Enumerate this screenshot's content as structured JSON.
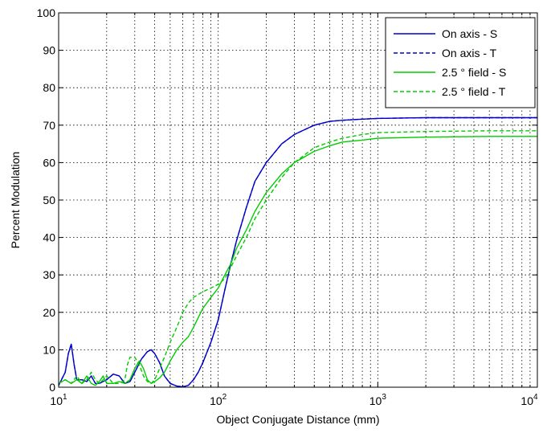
{
  "chart_data": {
    "type": "line",
    "xscale": "log",
    "xlim": [
      10,
      10000
    ],
    "ylim": [
      0,
      100
    ],
    "xlabel": "Object Conjugate Distance (mm)",
    "ylabel": "Percent Modulation",
    "grid": true,
    "legend_position": "top-right",
    "yticks": [
      "0",
      "10",
      "20",
      "30",
      "40",
      "50",
      "60",
      "70",
      "80",
      "90",
      "100"
    ],
    "xticks": [
      {
        "base": "10",
        "exp": "1"
      },
      {
        "base": "10",
        "exp": "2"
      },
      {
        "base": "10",
        "exp": "3"
      },
      {
        "base": "10",
        "exp": "4"
      }
    ],
    "series": [
      {
        "name": "On axis - S",
        "color": "#0000cc",
        "style": "solid",
        "x": [
          10,
          11,
          11.5,
          12,
          12.5,
          13,
          14,
          15,
          16,
          17,
          18,
          20,
          22,
          24,
          26,
          28,
          30,
          33,
          36,
          38,
          40,
          43,
          46,
          50,
          55,
          60,
          65,
          70,
          75,
          80,
          90,
          100,
          110,
          120,
          130,
          150,
          170,
          200,
          250,
          300,
          400,
          500,
          600,
          800,
          1000,
          2000,
          5000,
          10000
        ],
        "y": [
          0.5,
          4,
          9,
          11.5,
          6,
          2,
          2,
          1.5,
          3,
          1,
          1,
          2,
          3.5,
          3,
          1,
          1.5,
          4,
          7.5,
          9.5,
          10,
          9,
          6.5,
          3,
          1,
          0.3,
          0.1,
          0.5,
          2,
          4,
          6.5,
          12,
          18,
          26,
          33,
          39,
          48,
          55,
          60,
          65,
          67.5,
          70,
          71,
          71.3,
          71.6,
          71.8,
          72,
          72,
          72
        ]
      },
      {
        "name": "On axis - T",
        "color": "#0000cc",
        "style": "dashed",
        "x": [
          10,
          11,
          11.5,
          12,
          12.5,
          13,
          14,
          15,
          16,
          17,
          18,
          20,
          22,
          24,
          26,
          28,
          30,
          33,
          36,
          38,
          40,
          43,
          46,
          50,
          55,
          60,
          65,
          70,
          75,
          80,
          90,
          100,
          110,
          120,
          130,
          150,
          170,
          200,
          250,
          300,
          400,
          500,
          600,
          800,
          1000,
          2000,
          5000,
          10000
        ],
        "y": [
          0.5,
          4,
          9,
          11.5,
          6,
          2,
          2,
          1.5,
          3,
          1,
          1,
          2,
          3.5,
          3,
          1,
          1.5,
          4,
          7.5,
          9.5,
          10,
          9,
          6.5,
          3,
          1,
          0.3,
          0.1,
          0.5,
          2,
          4,
          6.5,
          12,
          18,
          26,
          33,
          39,
          48,
          55,
          60,
          65,
          67.5,
          70,
          71,
          71.3,
          71.6,
          71.8,
          72,
          72,
          72
        ]
      },
      {
        "name": "2.5 ° field - S",
        "color": "#00cc00",
        "style": "solid",
        "x": [
          10,
          11,
          12,
          13,
          14,
          15,
          16,
          17,
          18,
          19,
          20,
          22,
          24,
          26,
          28,
          30,
          32,
          34,
          36,
          38,
          40,
          43,
          46,
          50,
          55,
          60,
          65,
          70,
          80,
          90,
          100,
          110,
          120,
          130,
          150,
          170,
          200,
          250,
          300,
          400,
          500,
          600,
          800,
          1000,
          2000,
          5000,
          10000
        ],
        "y": [
          1,
          2,
          1,
          2,
          1,
          3,
          1,
          0.5,
          1.5,
          3,
          1,
          1,
          1.5,
          1,
          2,
          5,
          7,
          5,
          2,
          1,
          1.5,
          2.5,
          4,
          7,
          10,
          12,
          13.5,
          16,
          21,
          24,
          26.5,
          30,
          33,
          37,
          42,
          47,
          52,
          57,
          60,
          63,
          64.5,
          65.5,
          66,
          66.5,
          66.8,
          67,
          67
        ]
      },
      {
        "name": "2.5 ° field - T",
        "color": "#00cc00",
        "style": "dashed",
        "x": [
          10,
          11,
          12,
          13,
          14,
          15,
          16,
          17,
          18,
          19,
          20,
          22,
          24,
          26,
          27,
          28,
          30,
          32,
          34,
          36,
          38,
          40,
          43,
          46,
          50,
          55,
          60,
          65,
          70,
          80,
          90,
          100,
          110,
          120,
          130,
          150,
          170,
          200,
          250,
          300,
          400,
          500,
          600,
          800,
          1000,
          2000,
          5000,
          10000
        ],
        "y": [
          1,
          2,
          1,
          3,
          1,
          2,
          4,
          2,
          1,
          2,
          3,
          1,
          1,
          2,
          6,
          8,
          8,
          6,
          3,
          1.5,
          1,
          2,
          5,
          8,
          12,
          16,
          20,
          22.5,
          24,
          25.5,
          26.5,
          27.5,
          29,
          32,
          35,
          40,
          45,
          50,
          56,
          60,
          64,
          65.5,
          66.5,
          67.5,
          68,
          68.3,
          68.5,
          68.5
        ]
      }
    ]
  }
}
